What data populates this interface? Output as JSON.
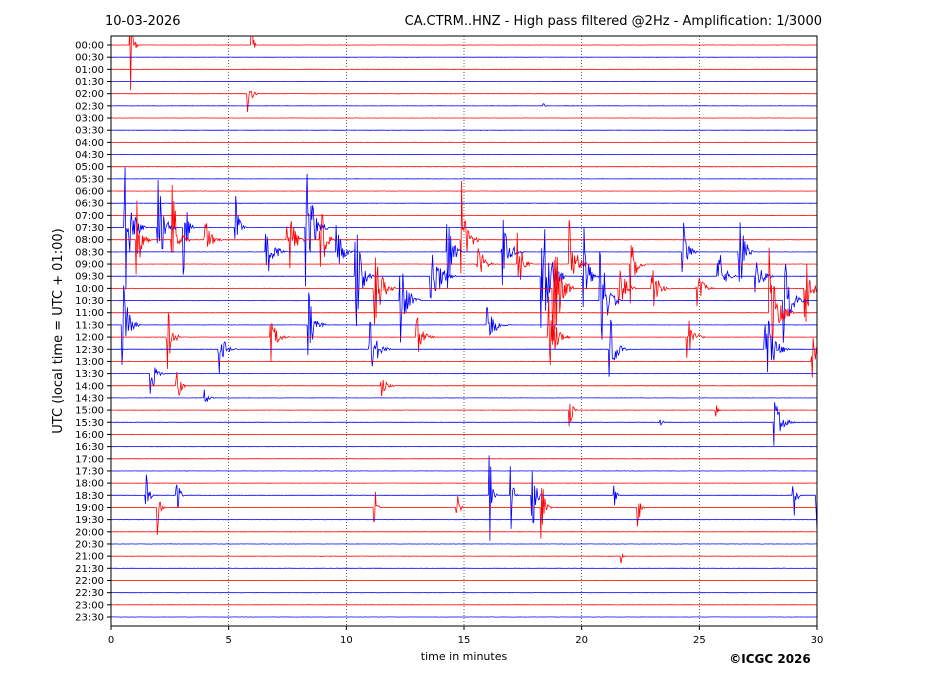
{
  "header": {
    "date": "10-03-2026",
    "title": "CA.CTRM..HNZ - High pass filtered @2Hz - Amplification: 1/3000"
  },
  "copyright": "©ICGC 2026",
  "colors": {
    "even_rows": "#ff0000",
    "odd_rows": "#0000ff",
    "axis": "#000000"
  },
  "chart_data": {
    "type": "line",
    "subtype": "helicorder",
    "title": "CA.CTRM..HNZ - High pass filtered @2Hz - Amplification: 1/3000",
    "xlabel": "time in minutes",
    "ylabel": "UTC (local time = UTC + 01:00)",
    "xlim": [
      0,
      30
    ],
    "xticks": [
      "0",
      "5",
      "10",
      "15",
      "20",
      "25",
      "30"
    ],
    "grid": "vertical dotted every 5 minutes",
    "row_labels": [
      "00:00",
      "00:30",
      "01:00",
      "01:30",
      "02:00",
      "02:30",
      "03:00",
      "03:30",
      "04:00",
      "04:30",
      "05:00",
      "05:30",
      "06:00",
      "06:30",
      "07:00",
      "07:30",
      "08:00",
      "08:30",
      "09:00",
      "09:30",
      "10:00",
      "10:30",
      "11:00",
      "11:30",
      "12:00",
      "12:30",
      "13:00",
      "13:30",
      "14:00",
      "14:30",
      "15:00",
      "15:30",
      "16:00",
      "16:30",
      "17:00",
      "17:30",
      "18:00",
      "18:30",
      "19:00",
      "19:30",
      "20:00",
      "20:30",
      "21:00",
      "21:30",
      "22:00",
      "22:30",
      "23:00",
      "23:30"
    ],
    "events_note": "each event = [row index, minute, amplitude in row spacings, duration in minutes]",
    "events": [
      [
        0,
        0.85,
        5,
        0.2
      ],
      [
        4,
        5.8,
        2.5,
        0.3
      ],
      [
        0,
        6.0,
        6,
        0.1
      ],
      [
        5,
        18.4,
        0.3,
        0.1
      ],
      [
        15,
        0.6,
        6,
        0.6
      ],
      [
        16,
        1.1,
        4,
        0.4
      ],
      [
        15,
        2.0,
        5,
        0.5
      ],
      [
        16,
        2.6,
        5,
        0.5
      ],
      [
        15,
        3.1,
        4,
        0.3
      ],
      [
        16,
        4.0,
        2,
        0.5
      ],
      [
        15,
        5.3,
        3,
        0.3
      ],
      [
        17,
        6.6,
        3,
        0.6
      ],
      [
        16,
        7.5,
        4,
        0.5
      ],
      [
        15,
        8.3,
        6,
        0.6
      ],
      [
        16,
        8.9,
        4,
        0.4
      ],
      [
        17,
        9.6,
        3,
        0.5
      ],
      [
        19,
        10.4,
        5,
        0.5
      ],
      [
        20,
        11.2,
        4,
        0.6
      ],
      [
        21,
        12.3,
        4,
        0.6
      ],
      [
        19,
        13.6,
        4,
        0.7
      ],
      [
        17,
        14.3,
        5,
        0.4
      ],
      [
        16,
        14.9,
        5,
        0.5
      ],
      [
        18,
        15.6,
        2,
        0.5
      ],
      [
        17,
        16.6,
        4,
        0.6
      ],
      [
        18,
        17.3,
        3,
        0.4
      ],
      [
        19,
        18.3,
        7,
        0.7
      ],
      [
        20,
        18.8,
        6,
        0.6
      ],
      [
        18,
        19.5,
        4,
        0.5
      ],
      [
        19,
        20.1,
        4,
        0.4
      ],
      [
        21,
        20.8,
        5,
        0.6
      ],
      [
        20,
        21.6,
        3,
        0.5
      ],
      [
        18,
        22.1,
        4,
        0.4
      ],
      [
        20,
        23.0,
        2,
        0.6
      ],
      [
        17,
        24.3,
        3,
        0.4
      ],
      [
        20,
        24.9,
        2,
        0.5
      ],
      [
        19,
        25.8,
        3,
        0.5
      ],
      [
        17,
        26.7,
        5,
        0.4
      ],
      [
        19,
        27.4,
        3,
        0.5
      ],
      [
        22,
        28.0,
        6,
        0.7
      ],
      [
        21,
        28.6,
        4,
        0.6
      ],
      [
        20,
        29.5,
        4,
        0.5
      ],
      [
        23,
        0.5,
        4,
        0.5
      ],
      [
        24,
        2.4,
        3,
        0.4
      ],
      [
        25,
        4.6,
        2,
        0.5
      ],
      [
        24,
        6.8,
        2,
        0.5
      ],
      [
        23,
        8.4,
        3,
        0.5
      ],
      [
        25,
        11.0,
        3,
        0.6
      ],
      [
        24,
        13.0,
        2,
        0.5
      ],
      [
        23,
        16.0,
        2,
        0.6
      ],
      [
        24,
        18.6,
        4,
        0.6
      ],
      [
        25,
        21.2,
        3,
        0.5
      ],
      [
        24,
        24.5,
        2,
        0.5
      ],
      [
        25,
        27.8,
        4,
        0.7
      ],
      [
        26,
        29.8,
        3,
        0.5
      ],
      [
        27,
        1.7,
        2,
        0.4
      ],
      [
        28,
        2.8,
        2,
        0.3
      ],
      [
        29,
        4.0,
        1,
        0.3
      ],
      [
        28,
        11.5,
        1,
        0.4
      ],
      [
        30,
        19.5,
        2,
        0.2
      ],
      [
        30,
        25.7,
        0.6,
        0.2
      ],
      [
        31,
        28.2,
        2,
        0.6
      ],
      [
        31,
        23.3,
        0.4,
        0.3
      ],
      [
        37,
        1.5,
        3,
        0.2
      ],
      [
        38,
        2.0,
        3,
        0.2
      ],
      [
        37,
        2.8,
        3,
        0.2
      ],
      [
        38,
        11.2,
        2,
        0.2
      ],
      [
        38,
        14.7,
        2,
        0.2
      ],
      [
        37,
        16.1,
        4,
        0.2
      ],
      [
        37,
        17.0,
        3,
        0.2
      ],
      [
        37,
        17.9,
        4,
        0.3
      ],
      [
        38,
        18.3,
        3,
        0.3
      ],
      [
        37,
        21.4,
        1,
        0.2
      ],
      [
        38,
        22.4,
        3,
        0.2
      ],
      [
        37,
        29.0,
        4,
        0.2
      ],
      [
        37,
        30.0,
        4,
        0.2
      ],
      [
        42,
        21.7,
        0.6,
        0.1
      ]
    ]
  }
}
